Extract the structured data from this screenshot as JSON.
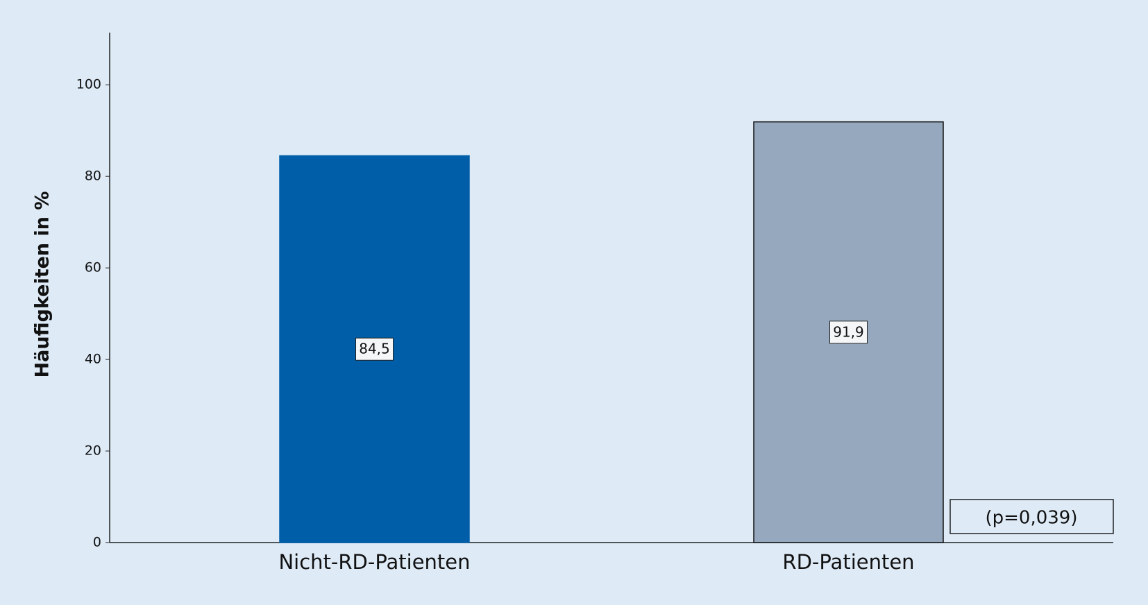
{
  "chart_data": {
    "type": "bar",
    "categories": [
      "Nicht-RD-Patienten",
      "RD-Patienten"
    ],
    "values": [
      84.5,
      91.9
    ],
    "value_labels": [
      "84,5",
      "91,9"
    ],
    "colors": [
      "#005ea8",
      "#96a8bd"
    ],
    "edgecolors": [
      "#005ea8",
      "#111111"
    ],
    "ylabel": "Häufigkeiten in %",
    "ylim": [
      0,
      111.4
    ],
    "yticks": [
      0,
      20,
      40,
      60,
      80,
      100
    ],
    "annotation": "(p=0,039)"
  }
}
